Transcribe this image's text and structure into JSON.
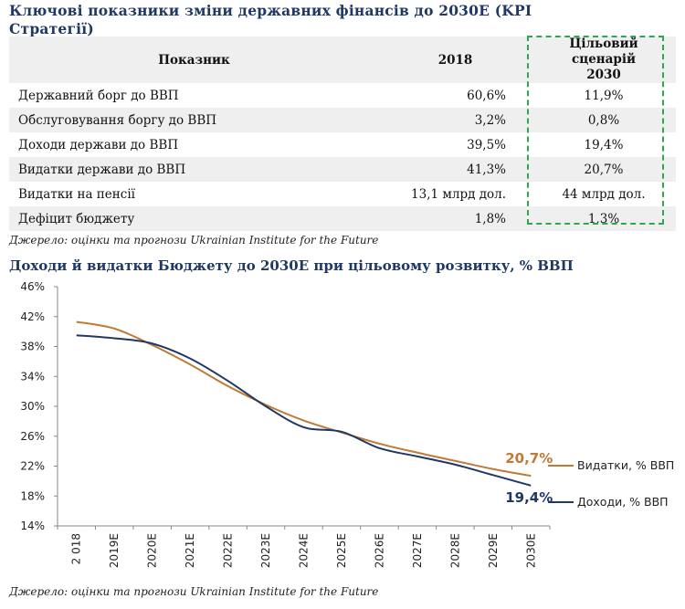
{
  "table": {
    "title": "Ключові показники зміни державних фінансів до 2030Е (KPI Стратегії)",
    "headers": [
      "Показник",
      "2018",
      "Цільовий сценарій 2030"
    ],
    "rows": [
      {
        "label": "Державний борг до ВВП",
        "v2018": "60,6%",
        "target": "11,9%"
      },
      {
        "label": "Обслуговування боргу до ВВП",
        "v2018": "3,2%",
        "target": "0,8%"
      },
      {
        "label": "Доходи держави до ВВП",
        "v2018": "39,5%",
        "target": "19,4%"
      },
      {
        "label": "Видатки держави до ВВП",
        "v2018": "41,3%",
        "target": "20,7%"
      },
      {
        "label": "Видатки на пенсії",
        "v2018": "13,1 млрд дол.",
        "target": "44 млрд дол."
      },
      {
        "label": "Дефіцит бюджету",
        "v2018": "1,8%",
        "target": "1,3%"
      }
    ],
    "source": "Джерело: оцінки та прогнози Ukrainian Institute for the Future"
  },
  "chart_data": {
    "type": "line",
    "title": "Доходи й видатки Бюджету до 2030Е при цільовому розвитку, % ВВП",
    "categories": [
      "2 018",
      "2019E",
      "2020E",
      "2021E",
      "2022E",
      "2023E",
      "2024E",
      "2025E",
      "2026E",
      "2027E",
      "2028E",
      "2029E",
      "2030E"
    ],
    "ylim": [
      14,
      46
    ],
    "yticks": [
      14,
      18,
      22,
      26,
      30,
      34,
      38,
      42,
      46
    ],
    "ytick_labels": [
      "14%",
      "18%",
      "22%",
      "26%",
      "30%",
      "34%",
      "38%",
      "42%",
      "46%"
    ],
    "series": [
      {
        "name": "Видатки, % ВВП",
        "color": "#c07a35",
        "values": [
          41.3,
          40.4,
          38.2,
          35.6,
          32.7,
          30.2,
          28.1,
          26.5,
          25.0,
          23.8,
          22.7,
          21.6,
          20.7
        ],
        "end_label": "20,7%"
      },
      {
        "name": "Доходи, % ВВП",
        "color": "#1f3864",
        "values": [
          39.5,
          39.1,
          38.4,
          36.4,
          33.4,
          30.0,
          27.2,
          26.6,
          24.4,
          23.3,
          22.2,
          20.8,
          19.4
        ],
        "end_label": "19,4%"
      }
    ],
    "source": "Джерело: оцінки та прогнози Ukrainian Institute for the Future"
  }
}
